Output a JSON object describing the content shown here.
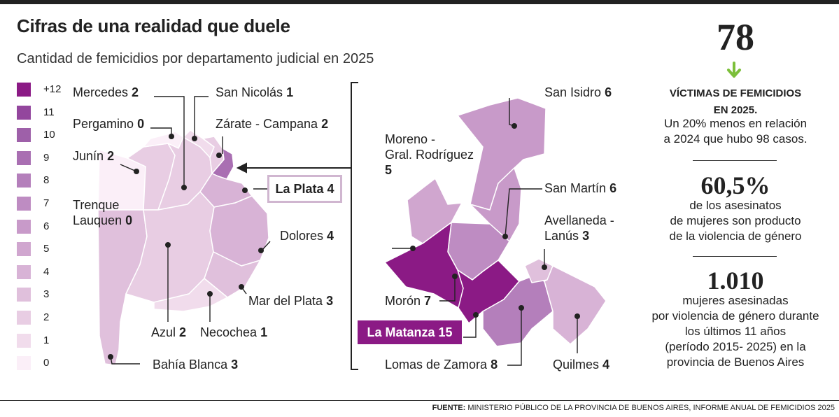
{
  "title": "Cifras de una realidad que duele",
  "subtitle": "Cantidad de femicidios por departamento judicial en 2025",
  "colors": {
    "scale": [
      "#fbeff8",
      "#f1dcec",
      "#e8cde3",
      "#e0c0dc",
      "#d8b3d6",
      "#d0a6cf",
      "#c89ac9",
      "#be8cc2",
      "#b47fbb",
      "#a96fb2",
      "#9e60a9",
      "#93469d",
      "#8b1a85"
    ]
  },
  "legend": {
    "items": [
      "+12",
      "11",
      "10",
      "9",
      "8",
      "7",
      "6",
      "5",
      "4",
      "3",
      "2",
      "1",
      "0"
    ]
  },
  "chart_data": {
    "type": "choropleth",
    "title": "Cifras de una realidad que duele",
    "subtitle": "Cantidad de femicidios por departamento judicial en 2025",
    "regions": [
      {
        "name": "Mercedes",
        "value": 2
      },
      {
        "name": "San Nicolás",
        "value": 1
      },
      {
        "name": "Pergamino",
        "value": 0
      },
      {
        "name": "Zárate - Campana",
        "value": 2
      },
      {
        "name": "Junín",
        "value": 2
      },
      {
        "name": "La Plata",
        "value": 4
      },
      {
        "name": "Trenque Lauquen",
        "value": 0
      },
      {
        "name": "Dolores",
        "value": 4
      },
      {
        "name": "Mar del Plata",
        "value": 3
      },
      {
        "name": "Azul",
        "value": 2
      },
      {
        "name": "Necochea",
        "value": 1
      },
      {
        "name": "Bahía Blanca",
        "value": 3
      },
      {
        "name": "San Isidro",
        "value": 6
      },
      {
        "name": "Moreno - Gral. Rodríguez",
        "value": 5
      },
      {
        "name": "San Martín",
        "value": 6
      },
      {
        "name": "Avellaneda - Lanús",
        "value": 3
      },
      {
        "name": "Morón",
        "value": 7
      },
      {
        "name": "La Matanza",
        "value": 15
      },
      {
        "name": "Lomas de Zamora",
        "value": 8
      },
      {
        "name": "Quilmes",
        "value": 4
      }
    ]
  },
  "labels": {
    "mercedes": {
      "name": "Mercedes",
      "value": "2"
    },
    "san_nicolas": {
      "name": "San Nicolás",
      "value": "1"
    },
    "pergamino": {
      "name": "Pergamino",
      "value": "0"
    },
    "zarate": {
      "name": "Zárate - Campana",
      "value": "2"
    },
    "junin": {
      "name": "Junín",
      "value": "2"
    },
    "la_plata": "La Plata 4",
    "trenque": {
      "line1": "Trenque",
      "line2": "Lauquen",
      "value": "0"
    },
    "dolores": {
      "name": "Dolores",
      "value": "4"
    },
    "mar_del_plata": {
      "name": "Mar del Plata",
      "value": "3"
    },
    "azul": {
      "name": "Azul",
      "value": "2"
    },
    "necochea": {
      "name": "Necochea",
      "value": "1"
    },
    "bahia": {
      "name": "Bahía Blanca",
      "value": "3"
    },
    "san_isidro": {
      "name": "San Isidro",
      "value": "6"
    },
    "moreno": {
      "line1": "Moreno -",
      "line2": "Gral. Rodríguez",
      "value": "5"
    },
    "san_martin": {
      "name": "San Martín",
      "value": "6"
    },
    "avellaneda": {
      "line1": "Avellaneda -",
      "line2": "Lanús",
      "value": "3"
    },
    "moron": {
      "name": "Morón",
      "value": "7"
    },
    "la_matanza": "La Matanza 15",
    "lomas": {
      "name": "Lomas de Zamora",
      "value": "8"
    },
    "quilmes": {
      "name": "Quilmes",
      "value": "4"
    }
  },
  "right_panel": {
    "victims_number": "78",
    "victims_caption_1": "VÍCTIMAS DE FEMICIDIOS",
    "victims_caption_2": "EN 2025.",
    "victims_text_1": "Un 20% menos en relación",
    "victims_text_2": "a 2024 que hubo 98 casos.",
    "pct_number": "60,5%",
    "pct_text_1": "de los asesinatos",
    "pct_text_2": "de mujeres son producto",
    "pct_text_3": "de la violencia de género",
    "total_number": "1.010",
    "total_text_1": "mujeres asesinadas",
    "total_text_2": "por violencia de género durante",
    "total_text_3": "los últimos 11 años",
    "total_text_4": "(período 2015- 2025) en la",
    "total_text_5": "provincia de Buenos Aires",
    "arrow_icon": "arrow-down-icon"
  },
  "source": {
    "label": "FUENTE:",
    "text": "MINISTERIO PÚBLICO DE LA PROVINCIA DE BUENOS AIRES, INFORME ANUAL DE FEMICIDIOS 2025"
  }
}
